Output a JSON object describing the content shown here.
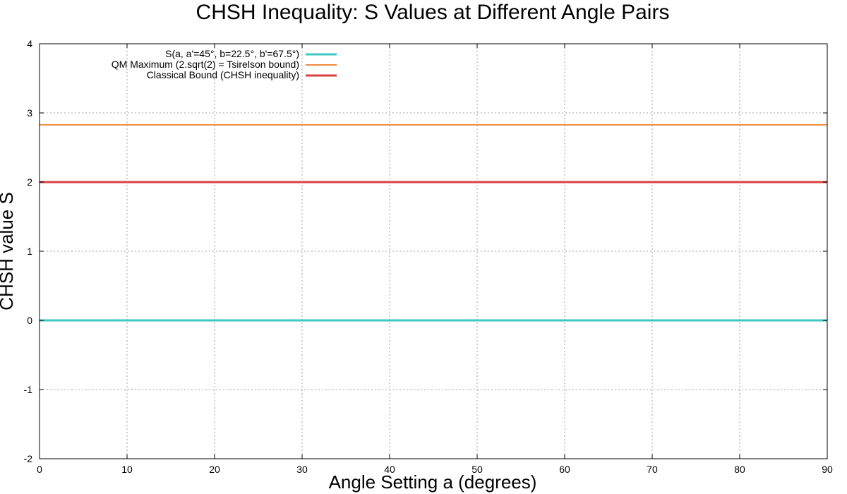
{
  "chart_data": {
    "type": "line",
    "title": "CHSH Inequality: S Values at Different Angle Pairs",
    "xlabel": "Angle Setting a (degrees)",
    "ylabel": "CHSH value S",
    "xlim": [
      0,
      90
    ],
    "ylim": [
      -2,
      4
    ],
    "xticks": [
      0,
      10,
      20,
      30,
      40,
      50,
      60,
      70,
      80,
      90
    ],
    "yticks": [
      -2,
      -1,
      0,
      1,
      2,
      3,
      4
    ],
    "grid": true,
    "legend_position": "top-left",
    "series": [
      {
        "name": "S(a, a'=45°, b=22.5°, b'=67.5°)",
        "color": "#3fc7c0",
        "x": [
          0,
          90
        ],
        "y": [
          0,
          0
        ]
      },
      {
        "name": "QM Maximum (2.sqrt(2) = Tsirelson bound)",
        "color": "#ef8a3c",
        "x": [
          0,
          90
        ],
        "y": [
          2.828,
          2.828
        ]
      },
      {
        "name": "Classical Bound (CHSH inequality)",
        "color": "#d94141",
        "x": [
          0,
          90
        ],
        "y": [
          2,
          2
        ]
      }
    ]
  }
}
